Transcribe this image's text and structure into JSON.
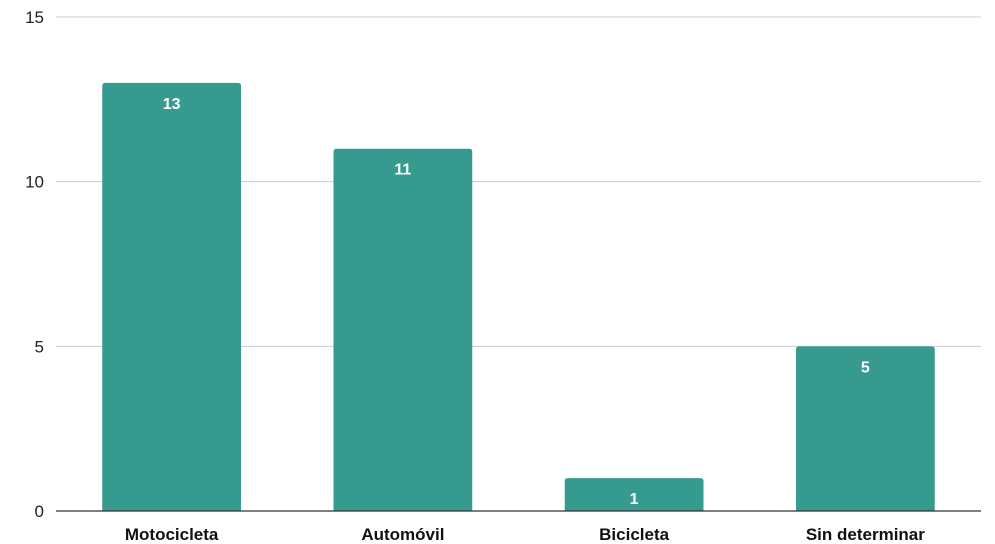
{
  "chart_data": {
    "type": "bar",
    "categories": [
      "Motocicleta",
      "Automóvil",
      "Bicicleta",
      "Sin determinar"
    ],
    "values": [
      13,
      11,
      1,
      5
    ],
    "data_labels": [
      "13",
      "11",
      "1",
      "5"
    ],
    "y_ticks": [
      0,
      5,
      10,
      15
    ],
    "y_tick_labels": [
      "0",
      "5",
      "10",
      "15"
    ],
    "ylim": [
      0,
      15
    ],
    "grid": true,
    "legend": "none",
    "title": "",
    "xlabel": "",
    "ylabel": "",
    "colors": {
      "bar": "#379a8f",
      "grid": "#cccccc",
      "axis": "#333333"
    }
  }
}
